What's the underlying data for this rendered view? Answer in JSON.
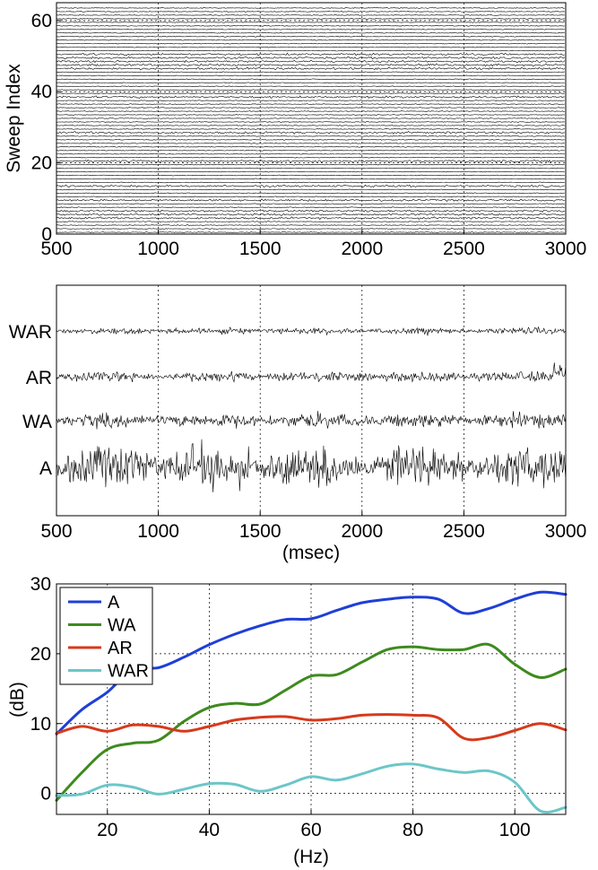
{
  "chart_data": [
    {
      "type": "line",
      "panel": "sweeps",
      "xlabel": "",
      "ylabel": "Sweep Index",
      "xlim": [
        500,
        3000
      ],
      "ylim": [
        0,
        65
      ],
      "xticks": [
        500,
        1000,
        1500,
        2000,
        2500,
        3000
      ],
      "yticks": [
        0,
        20,
        40,
        60
      ],
      "grid": true,
      "sweep_count": 64
    },
    {
      "type": "line",
      "panel": "waveforms",
      "xlabel": "(msec)",
      "ylabel": "",
      "xlim": [
        500,
        3000
      ],
      "xticks": [
        500,
        1000,
        1500,
        2000,
        2500,
        3000
      ],
      "grid": true,
      "series": [
        {
          "name": "WAR",
          "relative_amplitude": 0.12
        },
        {
          "name": "AR",
          "relative_amplitude": 0.22
        },
        {
          "name": "WA",
          "relative_amplitude": 0.45
        },
        {
          "name": "A",
          "relative_amplitude": 1.0
        }
      ]
    },
    {
      "type": "line",
      "panel": "spectra",
      "xlabel": "(Hz)",
      "ylabel": "(dB)",
      "xlim": [
        10,
        110
      ],
      "ylim": [
        -3,
        30
      ],
      "xticks": [
        20,
        40,
        60,
        80,
        100
      ],
      "yticks": [
        0,
        10,
        20,
        30
      ],
      "grid": true,
      "legend": "top-left",
      "x": [
        10,
        15,
        20,
        25,
        30,
        35,
        40,
        45,
        50,
        55,
        60,
        65,
        70,
        75,
        80,
        85,
        90,
        95,
        100,
        105,
        110
      ],
      "series": [
        {
          "name": "A",
          "color": "#1f3fd6",
          "values": [
            8.5,
            12,
            14.5,
            17.8,
            18,
            19.5,
            21.3,
            22.8,
            24,
            24.9,
            25,
            26.2,
            27.3,
            27.8,
            28.1,
            27.8,
            25.8,
            26.5,
            27.8,
            28.8,
            28.5
          ]
        },
        {
          "name": "WA",
          "color": "#3e8a1e",
          "values": [
            -1,
            3,
            6.3,
            7.2,
            7.6,
            10.3,
            12.3,
            12.9,
            12.8,
            14.8,
            16.8,
            17.0,
            18.8,
            20.6,
            21.0,
            20.6,
            20.6,
            21.3,
            18.5,
            16.6,
            17.8
          ]
        },
        {
          "name": "AR",
          "color": "#d63a1c",
          "values": [
            8.6,
            9.6,
            8.9,
            9.8,
            9.6,
            8.9,
            9.6,
            10.5,
            10.9,
            11.0,
            10.5,
            10.7,
            11.2,
            11.3,
            11.2,
            10.8,
            7.9,
            8.0,
            9.0,
            10.0,
            9.1
          ]
        },
        {
          "name": "WAR",
          "color": "#6cc6c8",
          "values": [
            -0.3,
            -0.1,
            1.2,
            0.9,
            -0.1,
            0.6,
            1.4,
            1.3,
            0.3,
            1.2,
            2.4,
            1.9,
            2.8,
            3.9,
            4.2,
            3.5,
            3.0,
            3.2,
            1.6,
            -2.5,
            -2.0
          ]
        }
      ]
    }
  ]
}
